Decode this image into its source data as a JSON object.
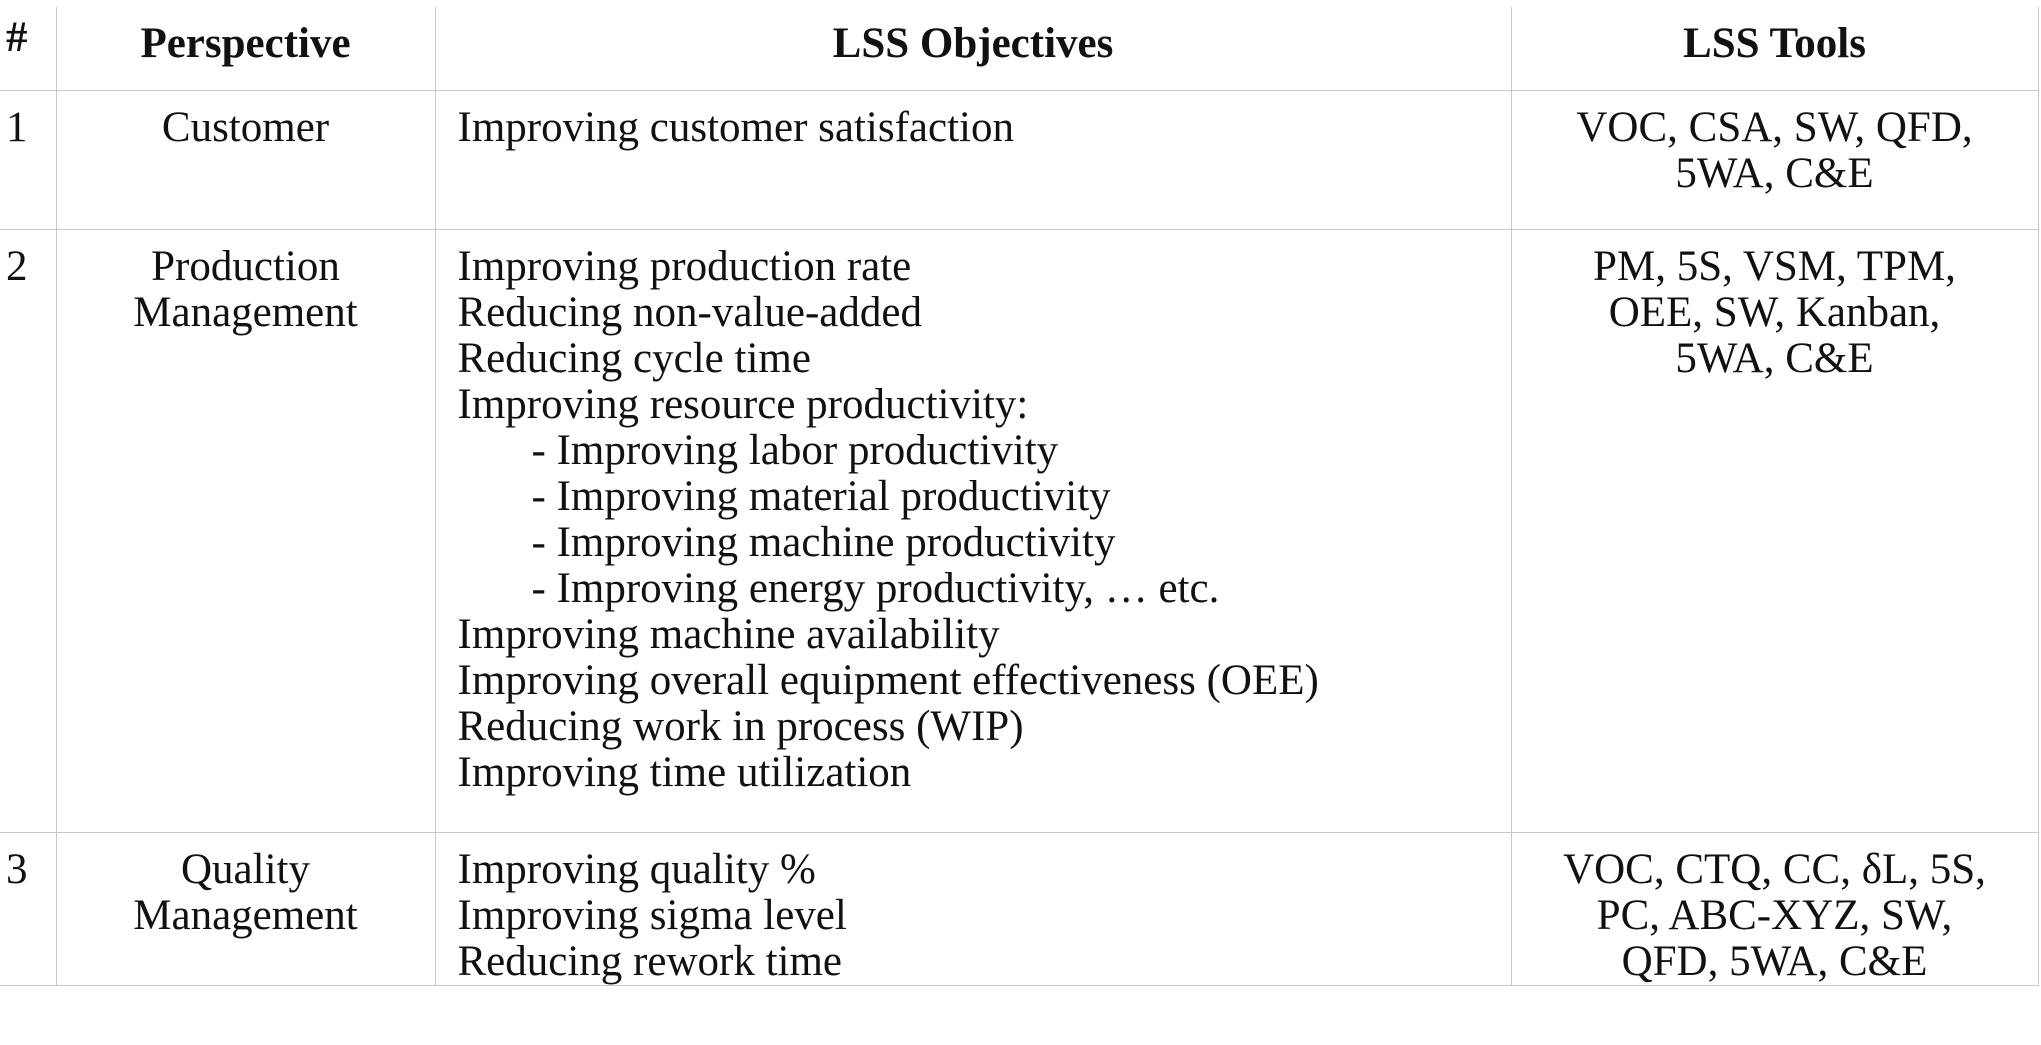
{
  "table": {
    "headers": {
      "num": "#",
      "perspective": "Perspective",
      "objectives": "LSS Objectives",
      "tools": "LSS Tools"
    },
    "rows": [
      {
        "num": "1",
        "perspective": [
          "Customer"
        ],
        "objectives": [
          {
            "text": "Improving customer satisfaction",
            "indent": false
          }
        ],
        "tools": [
          "VOC, CSA, SW, QFD,",
          "5WA, C&E"
        ]
      },
      {
        "num": "2",
        "perspective": [
          "Production",
          "Management"
        ],
        "objectives": [
          {
            "text": "Improving production rate",
            "indent": false
          },
          {
            "text": "Reducing non-value-added",
            "indent": false
          },
          {
            "text": "Reducing cycle time",
            "indent": false
          },
          {
            "text": "Improving resource productivity:",
            "indent": false
          },
          {
            "text": "- Improving labor productivity",
            "indent": true
          },
          {
            "text": "- Improving material productivity",
            "indent": true
          },
          {
            "text": "- Improving machine productivity",
            "indent": true
          },
          {
            "text": "- Improving energy productivity, … etc.",
            "indent": true
          },
          {
            "text": "Improving machine availability",
            "indent": false
          },
          {
            "text": "Improving overall equipment effectiveness (OEE)",
            "indent": false
          },
          {
            "text": "Reducing work in process (WIP)",
            "indent": false
          },
          {
            "text": "Improving time utilization",
            "indent": false
          }
        ],
        "tools": [
          "PM, 5S, VSM, TPM,",
          "OEE, SW, Kanban,",
          "5WA, C&E"
        ]
      },
      {
        "num": "3",
        "perspective": [
          "Quality",
          "Management"
        ],
        "objectives": [
          {
            "text": "Improving quality %",
            "indent": false
          },
          {
            "text": "Improving sigma level",
            "indent": false
          },
          {
            "text": "Reducing rework time",
            "indent": false
          }
        ],
        "tools": [
          "VOC, CTQ, CC, δL, 5S,",
          "PC, ABC-XYZ, SW,",
          "QFD, 5WA, C&E"
        ]
      }
    ]
  }
}
